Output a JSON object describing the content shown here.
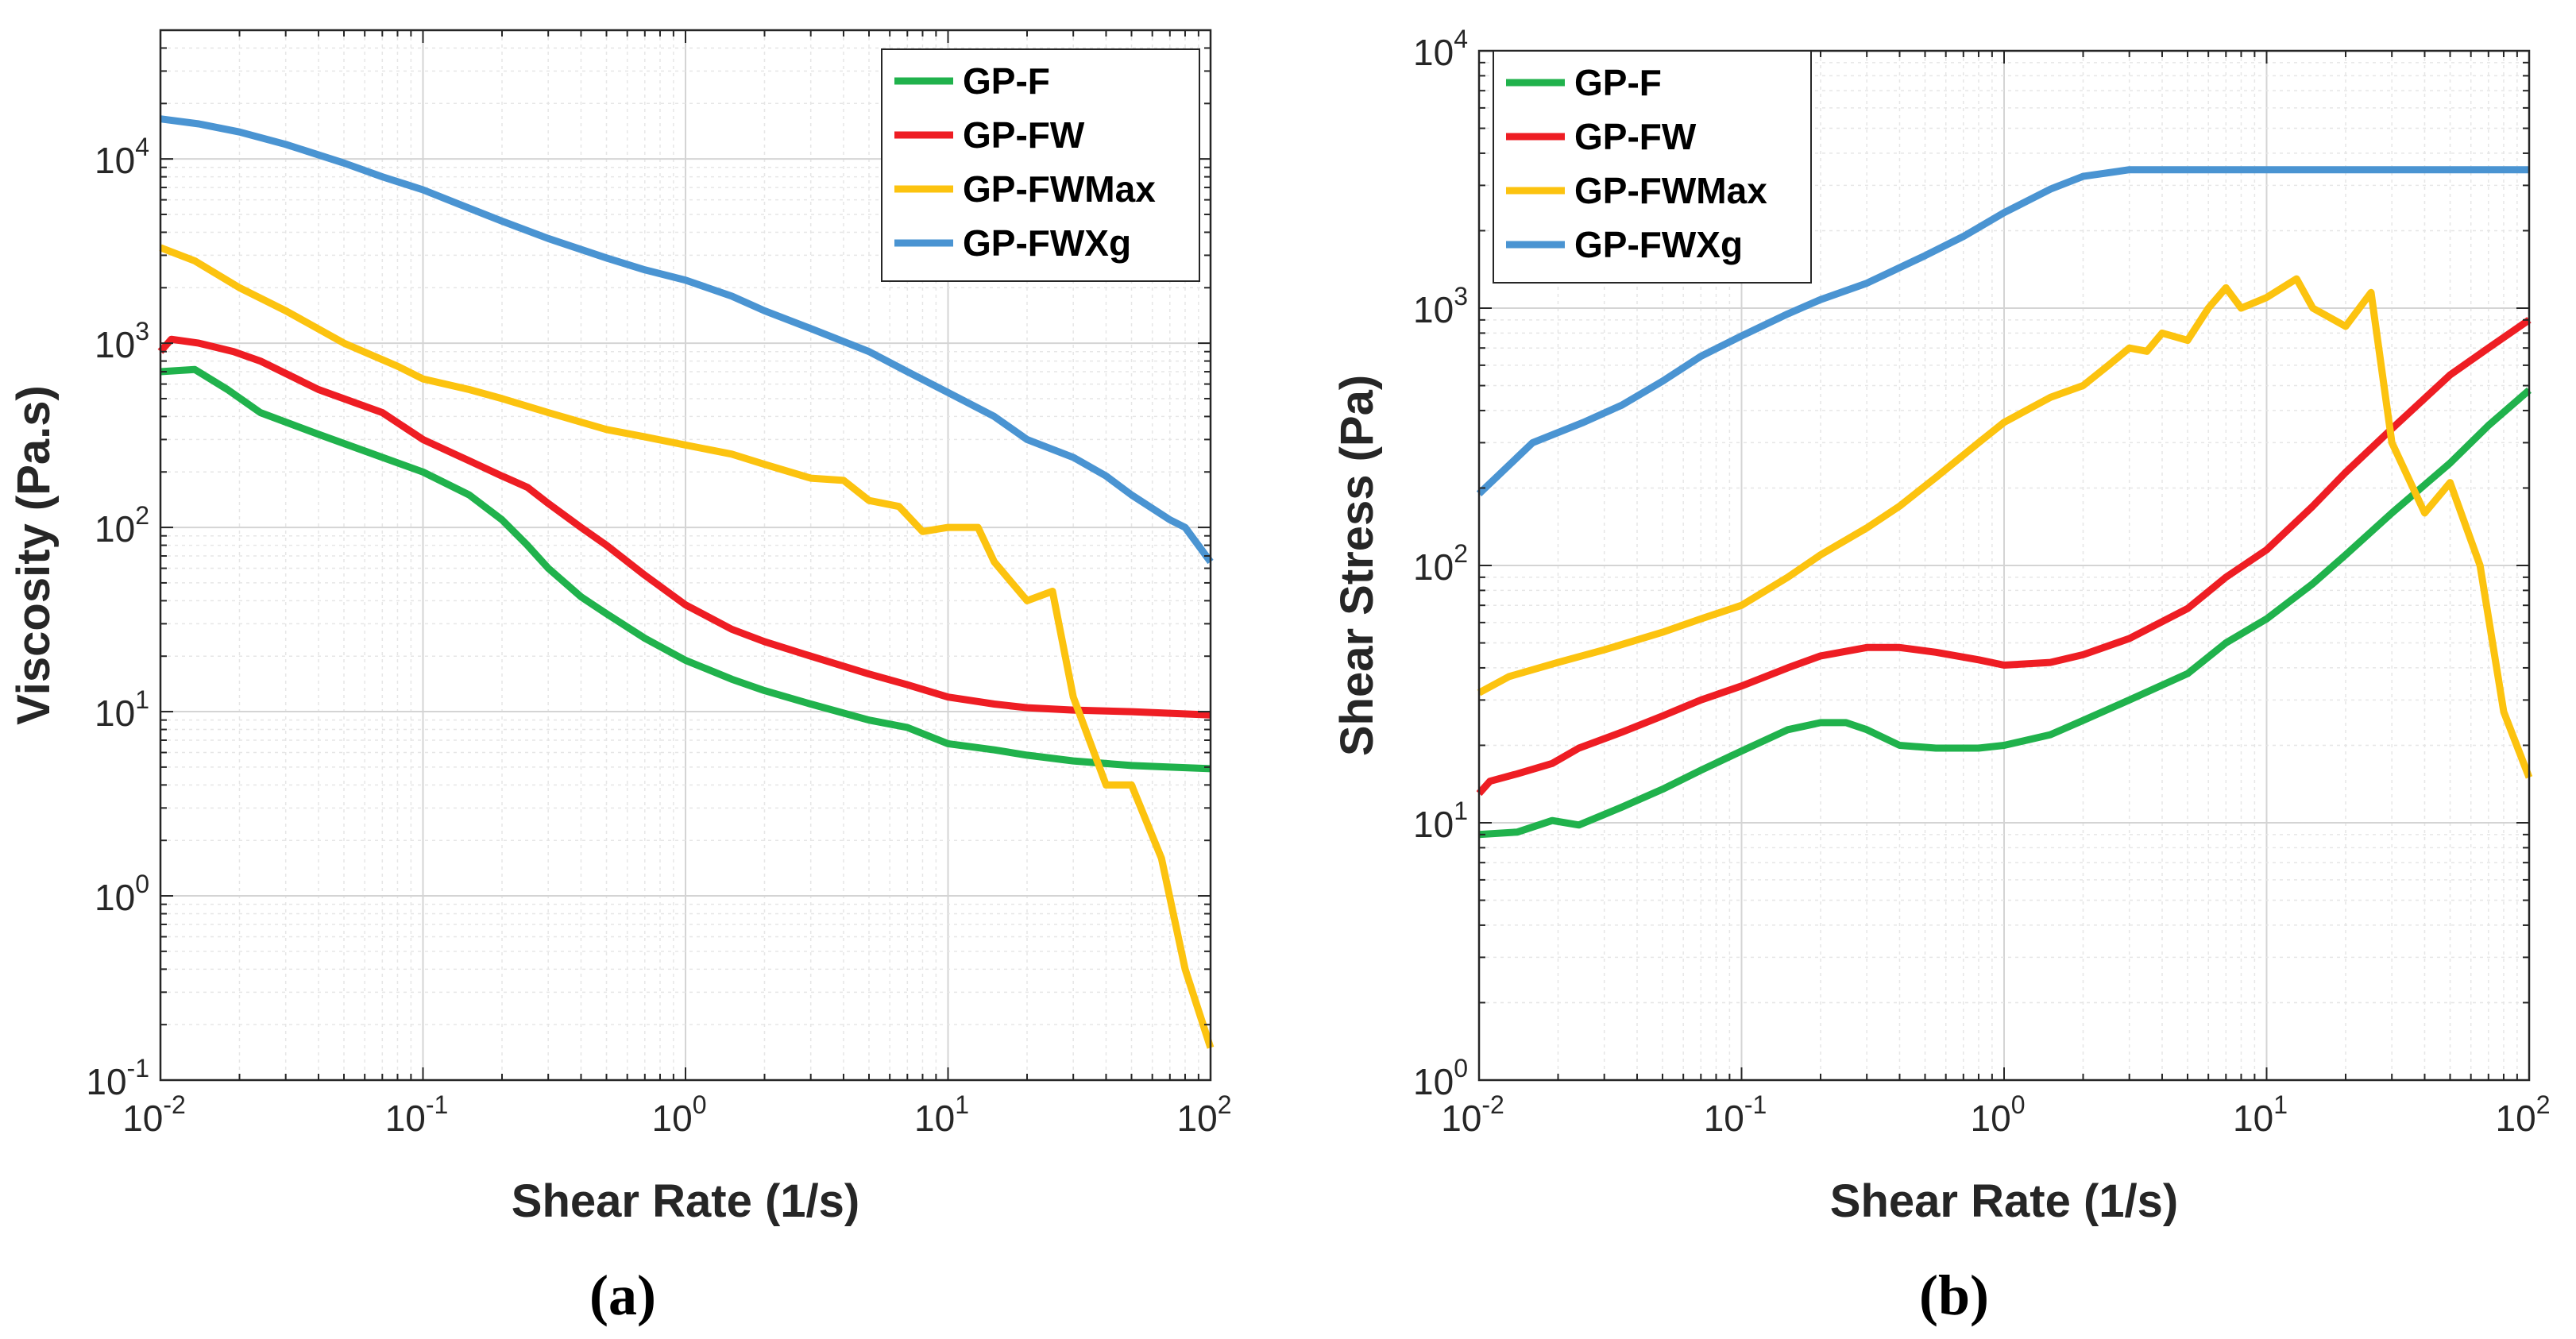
{
  "chart_data": [
    {
      "type": "line",
      "panel_label": "(a)",
      "xlabel": "Shear Rate (1/s)",
      "ylabel": "Viscosity (Pa.s)",
      "xscale": "log",
      "yscale": "log",
      "xlim": [
        0.01,
        100
      ],
      "ylim": [
        0.1,
        50000
      ],
      "grid": true,
      "legend_position": "top-right",
      "x_ticks": [
        {
          "base": "10",
          "exp": "-2",
          "value": 0.01
        },
        {
          "base": "10",
          "exp": "-1",
          "value": 0.1
        },
        {
          "base": "10",
          "exp": "0",
          "value": 1
        },
        {
          "base": "10",
          "exp": "1",
          "value": 10
        },
        {
          "base": "10",
          "exp": "2",
          "value": 100
        }
      ],
      "y_ticks": [
        {
          "base": "10",
          "exp": "-1",
          "value": 0.1
        },
        {
          "base": "10",
          "exp": "0",
          "value": 1
        },
        {
          "base": "10",
          "exp": "1",
          "value": 10
        },
        {
          "base": "10",
          "exp": "2",
          "value": 100
        },
        {
          "base": "10",
          "exp": "3",
          "value": 1000
        },
        {
          "base": "10",
          "exp": "4",
          "value": 10000
        }
      ],
      "series": [
        {
          "name": "GP-F",
          "color": "#20b24c",
          "x": [
            0.01,
            0.0135,
            0.018,
            0.024,
            0.04,
            0.07,
            0.1,
            0.15,
            0.2,
            0.25,
            0.3,
            0.4,
            0.5,
            0.7,
            1,
            1.5,
            2,
            3,
            5,
            7,
            10,
            15,
            20,
            30,
            50,
            70,
            100
          ],
          "y": [
            700,
            720,
            560,
            420,
            320,
            240,
            200,
            150,
            110,
            80,
            60,
            42,
            34,
            25,
            19,
            15,
            13,
            11,
            9,
            8.2,
            6.7,
            6.2,
            5.8,
            5.4,
            5.1,
            5.0,
            4.9
          ]
        },
        {
          "name": "GP-FW",
          "color": "#ee1d23",
          "x": [
            0.01,
            0.011,
            0.014,
            0.019,
            0.024,
            0.04,
            0.07,
            0.1,
            0.15,
            0.2,
            0.25,
            0.3,
            0.4,
            0.5,
            0.7,
            1,
            1.5,
            2,
            3,
            5,
            7,
            10,
            15,
            20,
            30,
            50,
            70,
            100
          ],
          "y": [
            900,
            1050,
            1000,
            900,
            800,
            560,
            420,
            300,
            230,
            190,
            165,
            135,
            100,
            80,
            55,
            38,
            28,
            24,
            20,
            16,
            14,
            12,
            11,
            10.5,
            10.2,
            10.0,
            9.8,
            9.6
          ]
        },
        {
          "name": "GP-FWMax",
          "color": "#fcc30f",
          "x": [
            0.01,
            0.0135,
            0.02,
            0.03,
            0.05,
            0.08,
            0.1,
            0.15,
            0.2,
            0.3,
            0.5,
            0.7,
            1,
            1.5,
            2,
            3,
            4,
            5,
            6.5,
            8,
            10,
            13,
            15,
            20,
            25,
            30,
            40,
            50,
            65,
            80,
            100
          ],
          "y": [
            3300,
            2800,
            2000,
            1500,
            1000,
            750,
            640,
            560,
            500,
            420,
            340,
            310,
            280,
            250,
            220,
            185,
            180,
            140,
            130,
            95,
            100,
            100,
            65,
            40,
            45,
            12,
            4,
            4,
            1.6,
            0.4,
            0.15
          ]
        },
        {
          "name": "GP-FWXg",
          "color": "#4a94d2",
          "x": [
            0.01,
            0.014,
            0.02,
            0.03,
            0.05,
            0.07,
            0.1,
            0.15,
            0.2,
            0.3,
            0.5,
            0.7,
            1,
            1.5,
            2,
            3,
            5,
            7,
            10,
            15,
            20,
            30,
            40,
            50,
            70,
            80,
            100
          ],
          "y": [
            16500,
            15500,
            14000,
            12000,
            9500,
            8000,
            6800,
            5400,
            4600,
            3700,
            2900,
            2500,
            2200,
            1800,
            1500,
            1200,
            900,
            700,
            540,
            400,
            300,
            240,
            190,
            150,
            110,
            100,
            65
          ]
        }
      ]
    },
    {
      "type": "line",
      "panel_label": "(b)",
      "xlabel": "Shear Rate (1/s)",
      "ylabel": "Shear Stress (Pa)",
      "xscale": "log",
      "yscale": "log",
      "xlim": [
        0.01,
        100
      ],
      "ylim": [
        1,
        10000
      ],
      "grid": true,
      "legend_position": "top-left",
      "x_ticks": [
        {
          "base": "10",
          "exp": "-2",
          "value": 0.01
        },
        {
          "base": "10",
          "exp": "-1",
          "value": 0.1
        },
        {
          "base": "10",
          "exp": "0",
          "value": 1
        },
        {
          "base": "10",
          "exp": "1",
          "value": 10
        },
        {
          "base": "10",
          "exp": "2",
          "value": 100
        }
      ],
      "y_ticks": [
        {
          "base": "10",
          "exp": "0",
          "value": 1
        },
        {
          "base": "10",
          "exp": "1",
          "value": 10
        },
        {
          "base": "10",
          "exp": "2",
          "value": 100
        },
        {
          "base": "10",
          "exp": "3",
          "value": 1000
        },
        {
          "base": "10",
          "exp": "4",
          "value": 10000
        }
      ],
      "series": [
        {
          "name": "GP-F",
          "color": "#20b24c",
          "x": [
            0.01,
            0.014,
            0.019,
            0.024,
            0.035,
            0.05,
            0.07,
            0.1,
            0.15,
            0.2,
            0.25,
            0.3,
            0.4,
            0.55,
            0.8,
            1,
            1.5,
            2,
            3,
            5,
            7,
            10,
            15,
            20,
            30,
            50,
            70,
            100
          ],
          "y": [
            9,
            9.2,
            10.2,
            9.8,
            11.5,
            13.5,
            16,
            19,
            23,
            24.5,
            24.5,
            23,
            20,
            19.5,
            19.5,
            20,
            22,
            25,
            30,
            38,
            50,
            62,
            85,
            110,
            160,
            250,
            350,
            480
          ]
        },
        {
          "name": "GP-FW",
          "color": "#ee1d23",
          "x": [
            0.01,
            0.011,
            0.014,
            0.019,
            0.024,
            0.035,
            0.05,
            0.07,
            0.1,
            0.15,
            0.2,
            0.3,
            0.4,
            0.55,
            0.8,
            1,
            1.5,
            2,
            3,
            5,
            7,
            10,
            15,
            20,
            30,
            50,
            70,
            100
          ],
          "y": [
            13,
            14.5,
            15.5,
            17,
            19.5,
            22.5,
            26,
            30,
            34,
            40,
            44.5,
            48,
            48,
            46,
            43,
            41,
            42,
            45,
            52,
            68,
            90,
            115,
            170,
            230,
            340,
            550,
            700,
            900
          ]
        },
        {
          "name": "GP-FWMax",
          "color": "#fcc30f",
          "x": [
            0.01,
            0.013,
            0.02,
            0.03,
            0.05,
            0.07,
            0.1,
            0.15,
            0.2,
            0.3,
            0.4,
            0.55,
            0.8,
            1,
            1.5,
            2,
            2.5,
            3,
            3.5,
            4,
            5,
            6,
            7,
            8,
            10,
            13,
            15,
            20,
            25,
            30,
            40,
            50,
            65,
            80,
            100
          ],
          "y": [
            32,
            37,
            42,
            47,
            55,
            62,
            70,
            90,
            110,
            140,
            170,
            220,
            300,
            360,
            450,
            500,
            600,
            700,
            680,
            800,
            750,
            1000,
            1200,
            1000,
            1100,
            1300,
            1000,
            850,
            1150,
            300,
            160,
            210,
            100,
            27,
            15
          ]
        },
        {
          "name": "GP-FWXg",
          "color": "#4a94d2",
          "x": [
            0.01,
            0.016,
            0.025,
            0.035,
            0.05,
            0.07,
            0.1,
            0.15,
            0.2,
            0.3,
            0.5,
            0.7,
            1,
            1.5,
            2,
            3,
            5,
            10,
            30,
            100
          ],
          "y": [
            190,
            300,
            360,
            420,
            520,
            650,
            780,
            950,
            1080,
            1250,
            1600,
            1900,
            2350,
            2900,
            3250,
            3450,
            3450,
            3450,
            3450,
            3450
          ]
        }
      ]
    }
  ]
}
